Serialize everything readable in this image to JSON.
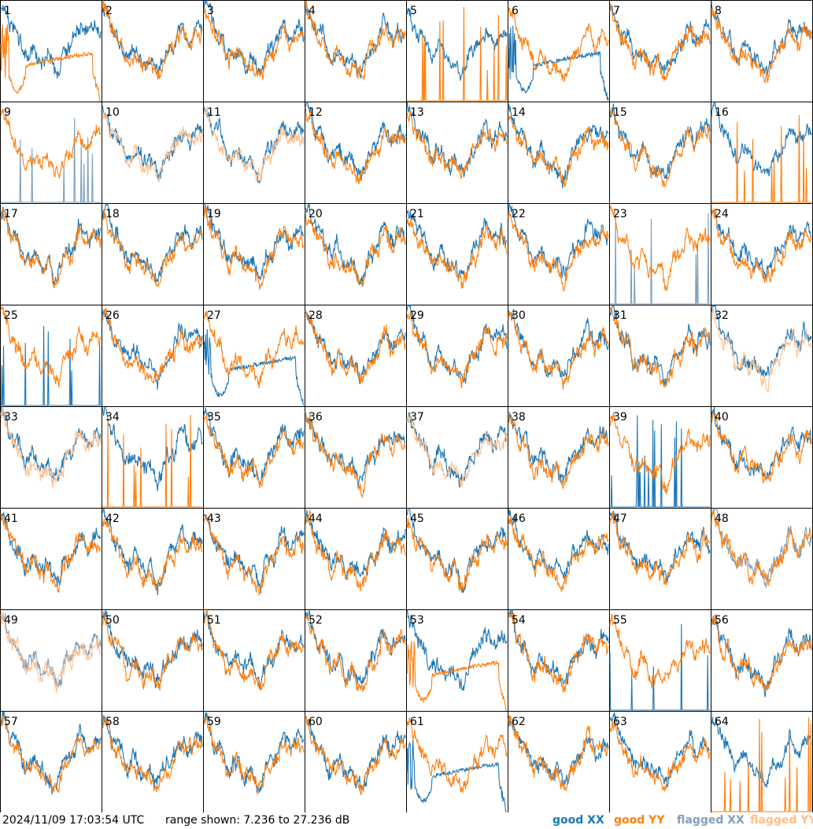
{
  "chart_data": {
    "type": "line",
    "panels": [
      1,
      2,
      3,
      4,
      5,
      6,
      7,
      8,
      9,
      10,
      11,
      12,
      13,
      14,
      15,
      16,
      17,
      18,
      19,
      20,
      21,
      22,
      23,
      24,
      25,
      26,
      27,
      28,
      29,
      30,
      31,
      32,
      33,
      34,
      35,
      36,
      37,
      38,
      39,
      40,
      41,
      42,
      43,
      44,
      45,
      46,
      47,
      48,
      49,
      50,
      51,
      52,
      53,
      54,
      55,
      56,
      57,
      58,
      59,
      60,
      61,
      62,
      63,
      64
    ],
    "ylim": [
      7.236,
      27.236
    ],
    "series": [
      {
        "name": "good XX",
        "color": "#1f77b4"
      },
      {
        "name": "good YY",
        "color": "#ff7f0e"
      },
      {
        "name": "flagged XX",
        "color": "#7f9fb9"
      },
      {
        "name": "flagged YY",
        "color": "#ffbf8e"
      }
    ],
    "panel_status": {
      "flagged_xx": [
        9,
        23,
        48,
        49
      ],
      "flagged_yy": [
        10,
        11,
        32,
        33,
        37,
        49
      ],
      "xx_spiky": [
        9,
        23,
        25,
        39,
        55
      ],
      "yy_spiky": [
        5,
        16,
        34,
        64
      ],
      "xx_bad_drop": [
        6,
        27,
        61
      ],
      "yy_bad_drop": [
        1,
        53
      ]
    }
  },
  "footer": {
    "timestamp": "2024/11/09 17:03:54 UTC",
    "range_text": "range shown: 7.236 to 27.236 dB"
  },
  "legend": [
    {
      "label": "good XX",
      "color": "#1f77b4"
    },
    {
      "label": "good YY",
      "color": "#ff7f0e"
    },
    {
      "label": "flagged XX",
      "color": "#7f9fb9"
    },
    {
      "label": "flagged YY",
      "color": "#ffbf8e"
    }
  ]
}
